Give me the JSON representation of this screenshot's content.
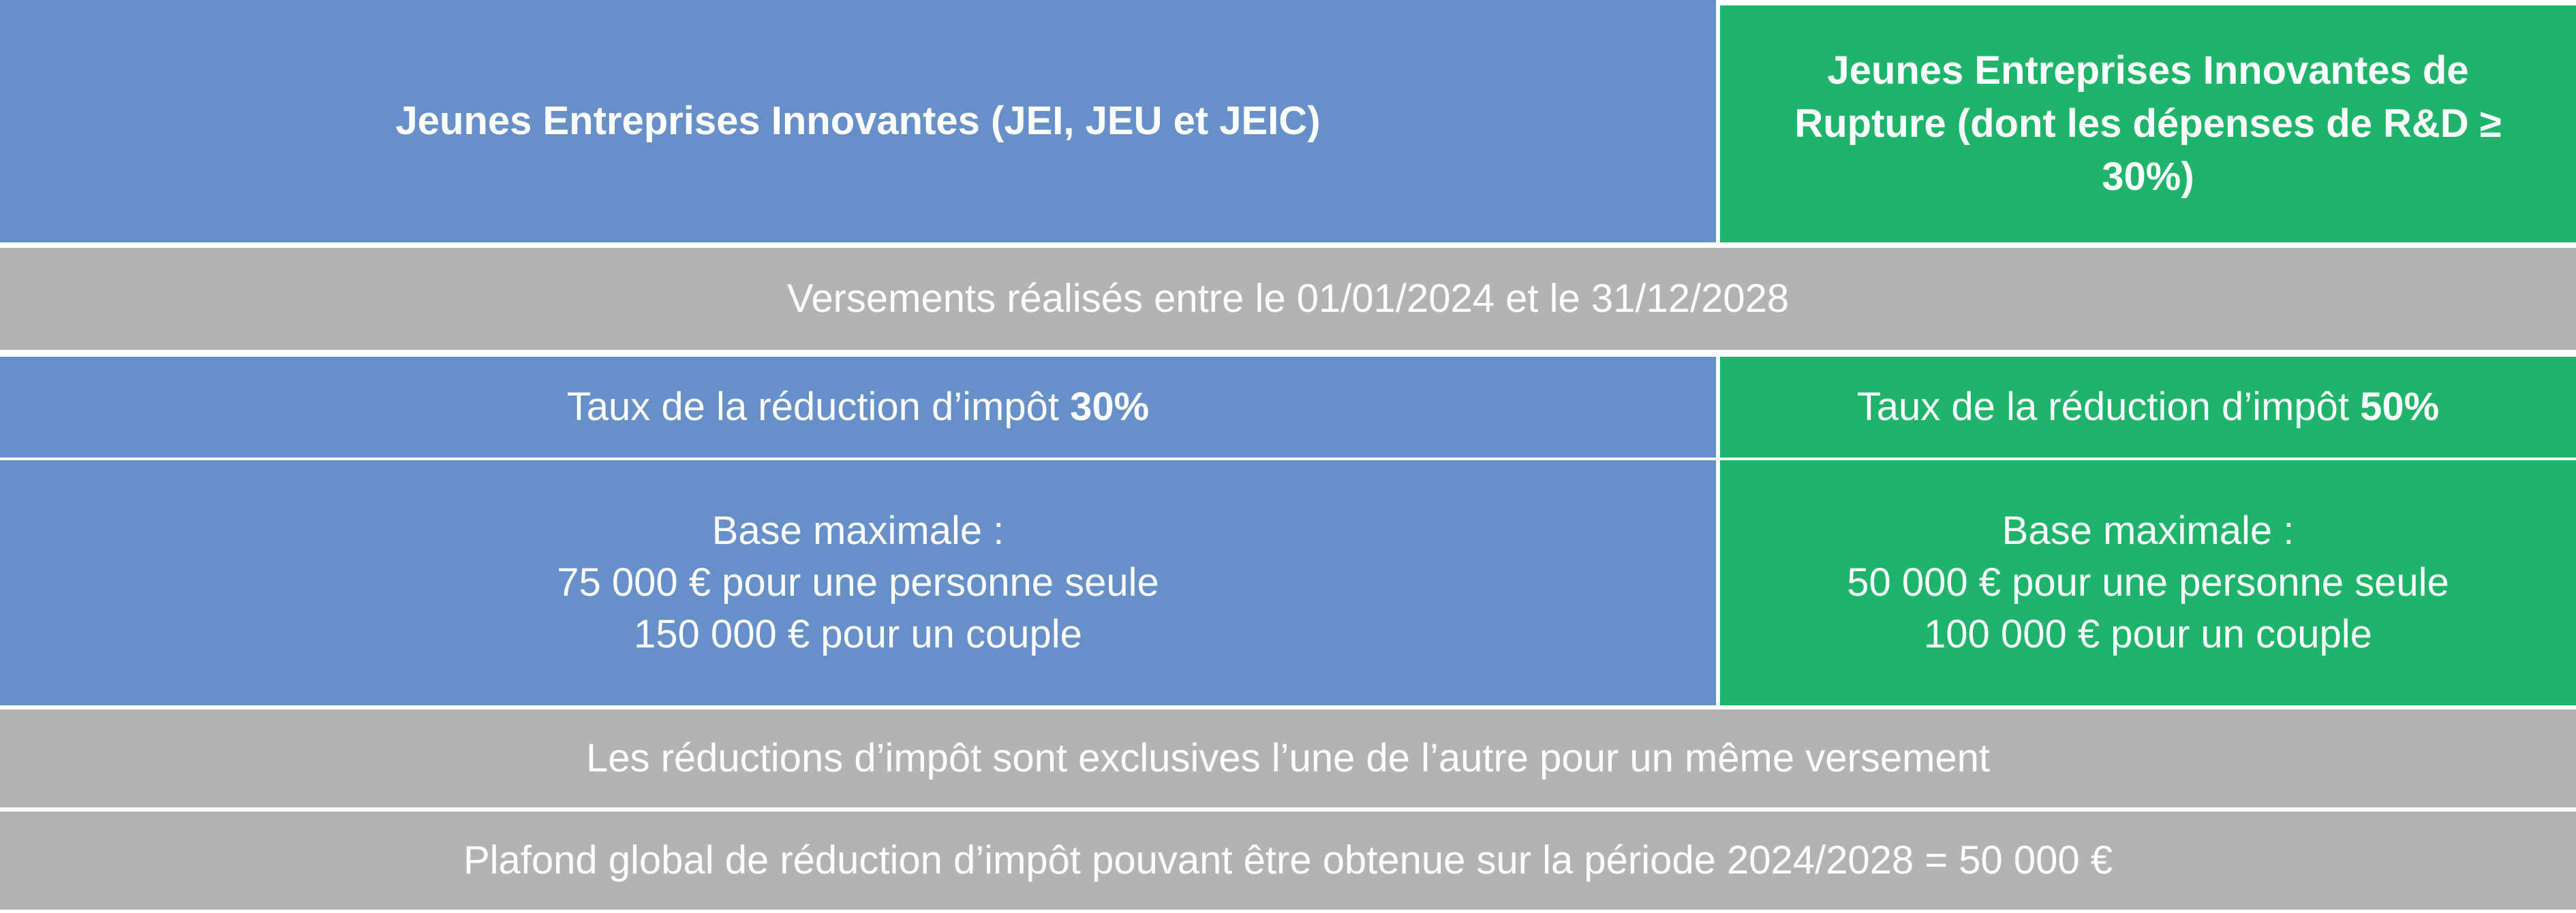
{
  "header": {
    "left": "Jeunes Entreprises Innovantes (JEI, JEU et JEIC)",
    "right_lines": [
      "Jeunes Entreprises Innovantes de",
      "Rupture (dont les dépenses de R&D ≥",
      "30%)"
    ]
  },
  "period": "Versements réalisés entre le 01/01/2024 et le 31/12/2028",
  "rate": {
    "prefix": "Taux de la réduction d’impôt ",
    "left_value": "30%",
    "right_value": "50%"
  },
  "base": {
    "title": "Base maximale :",
    "left_lines": [
      "75 000 € pour une personne seule",
      "150 000 € pour un couple"
    ],
    "right_lines": [
      "50 000 € pour une personne seule",
      "100 000 € pour un couple"
    ]
  },
  "exclusivity": "Les réductions d’impôt sont exclusives l’une de l’autre pour un même versement",
  "cap": "Plafond global de réduction d’impôt pouvant être obtenue sur la période 2024/2028 = 50 000 €",
  "colors": {
    "blue": "#6890c8",
    "green": "#1eb46a",
    "grey": "#b3b3b3",
    "text": "#ffffff"
  }
}
